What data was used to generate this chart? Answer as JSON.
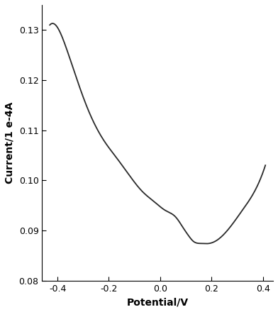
{
  "title": "",
  "xlabel": "Potential/V",
  "ylabel": "Current/1 e-4A",
  "xlim": [
    -0.46,
    0.44
  ],
  "ylim": [
    0.08,
    0.135
  ],
  "yticks": [
    0.08,
    0.09,
    0.1,
    0.11,
    0.12,
    0.13
  ],
  "xticks": [
    -0.4,
    -0.2,
    0.0,
    0.2,
    0.4
  ],
  "control_x": [
    -0.43,
    -0.4,
    -0.37,
    -0.33,
    -0.28,
    -0.22,
    -0.17,
    -0.12,
    -0.07,
    -0.02,
    0.02,
    0.06,
    0.09,
    0.11,
    0.13,
    0.16,
    0.19,
    0.22,
    0.27,
    0.32,
    0.37,
    0.41
  ],
  "control_y": [
    0.131,
    0.1305,
    0.127,
    0.121,
    0.114,
    0.108,
    0.1045,
    0.101,
    0.0978,
    0.0956,
    0.094,
    0.0927,
    0.0905,
    0.089,
    0.0878,
    0.0874,
    0.0874,
    0.088,
    0.0905,
    0.094,
    0.098,
    0.103
  ],
  "line_color": "#2a2a2a",
  "line_width": 1.3,
  "background_color": "#ffffff",
  "tick_label_fontsize": 9,
  "axis_label_fontsize": 10,
  "xlabel_fontweight": "bold",
  "ylabel_fontweight": "bold"
}
